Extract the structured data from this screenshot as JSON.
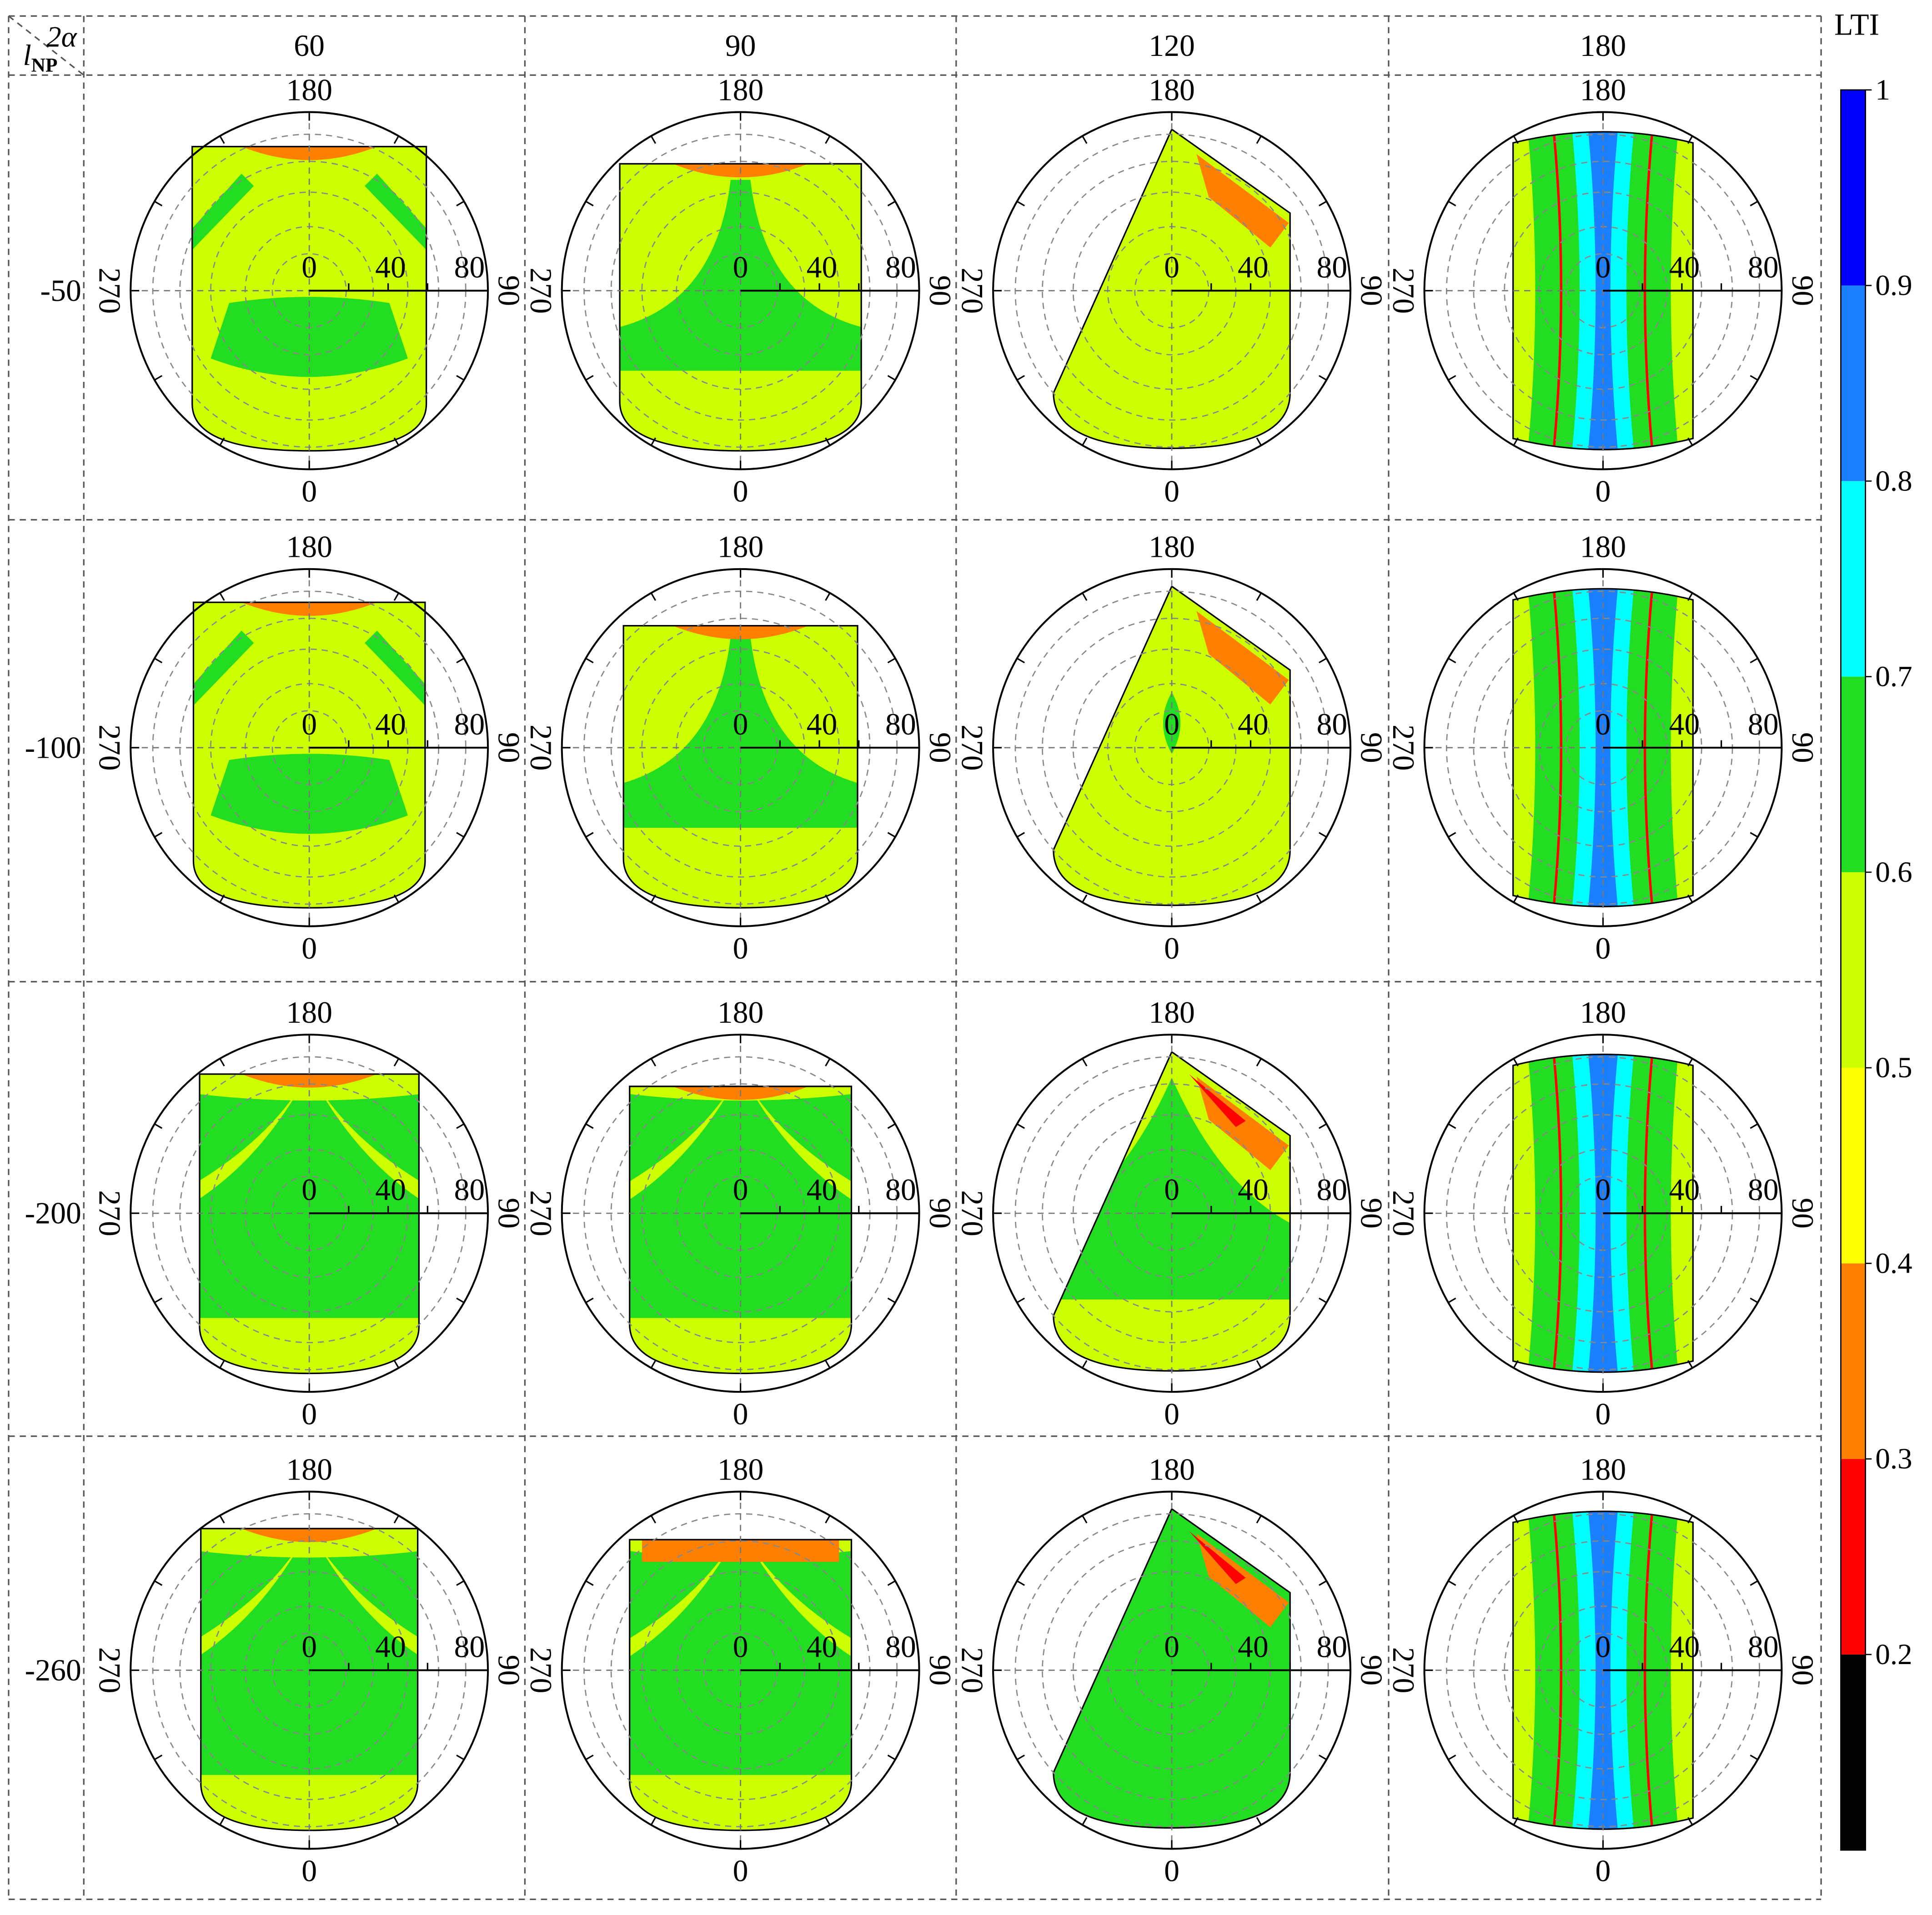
{
  "chart_data": {
    "type": "heatmap",
    "description_layout": "4x4 grid of polar contour plots",
    "corner_labels": {
      "column_variable": "2α",
      "row_variable_base": "l",
      "row_variable_sub": "NP"
    },
    "columns": [
      "60",
      "90",
      "120",
      "180"
    ],
    "rows": [
      "-50",
      "-100",
      "-200",
      "-260"
    ],
    "polar_angle_labels": {
      "top": "180",
      "bottom": "0",
      "left": "270",
      "right": "90"
    },
    "polar_radial_labels": [
      "0",
      "40",
      "80"
    ],
    "colorbar": {
      "title": "LTI",
      "ticks": [
        "0.2",
        "0.3",
        "0.4",
        "0.5",
        "0.6",
        "0.7",
        "0.8",
        "0.9",
        "1"
      ],
      "bands": [
        {
          "from": 0.1,
          "to": 0.2,
          "color": "#000000"
        },
        {
          "from": 0.2,
          "to": 0.3,
          "color": "#ff0000"
        },
        {
          "from": 0.3,
          "to": 0.4,
          "color": "#ff8000"
        },
        {
          "from": 0.4,
          "to": 0.5,
          "color": "#ffff00"
        },
        {
          "from": 0.5,
          "to": 0.6,
          "color": "#ccff00"
        },
        {
          "from": 0.6,
          "to": 0.7,
          "color": "#22dd22"
        },
        {
          "from": 0.7,
          "to": 0.8,
          "color": "#00ffff"
        },
        {
          "from": 0.8,
          "to": 0.9,
          "color": "#1a80ff"
        },
        {
          "from": 0.9,
          "to": 1.0,
          "color": "#0000ff"
        }
      ]
    }
  }
}
